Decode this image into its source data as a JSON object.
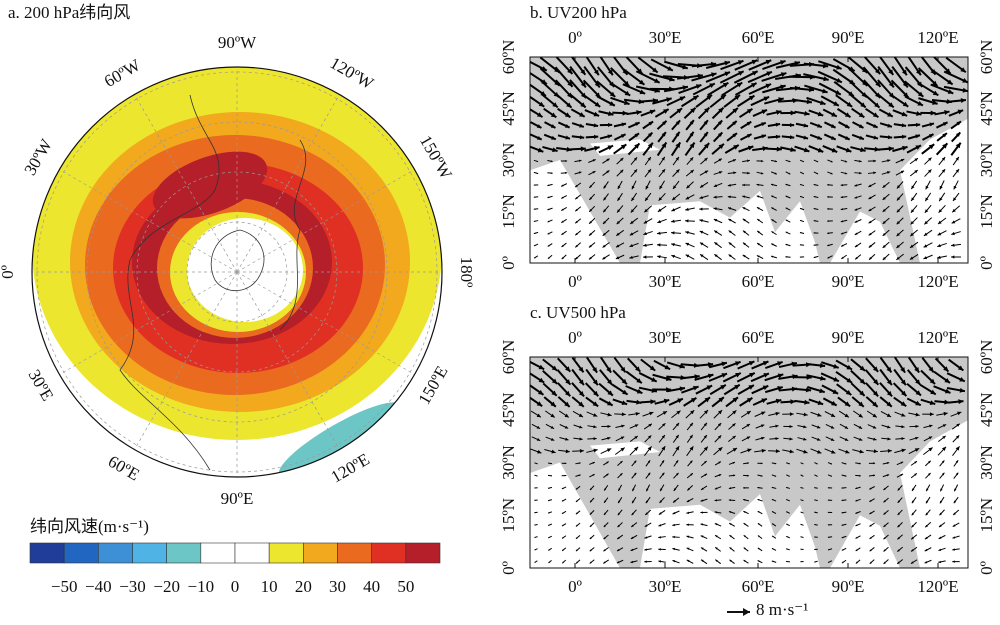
{
  "panels": [
    {
      "title": "a. 200 hPa纬向风",
      "lon_labels": [
        "90ºW",
        "120ºW",
        "150ºW",
        "180º",
        "150ºE",
        "120ºE",
        "90ºE",
        "60ºE",
        "30ºE",
        "0º",
        "30ºW",
        "60ºW"
      ]
    },
    {
      "title": "b. UV200 hPa",
      "x_labels": [
        "0º",
        "30ºE",
        "60ºE",
        "90ºE",
        "120ºE"
      ],
      "y_labels": [
        "60ºN",
        "45ºN",
        "30ºN",
        "15ºN",
        "0º"
      ]
    },
    {
      "title": "c. UV500 hPa",
      "x_labels": [
        "0º",
        "30ºE",
        "60ºE",
        "90ºE",
        "120ºE"
      ],
      "y_labels": [
        "60ºN",
        "45ºN",
        "30ºN",
        "15ºN",
        "0º"
      ]
    }
  ],
  "colorbar": {
    "title": "纬向风速(m·s⁻¹)",
    "colors": [
      "#1f3d99",
      "#2166c0",
      "#3d8fd6",
      "#4fb3e6",
      "#6cc6c6",
      "#ffffff",
      "#ffffff",
      "#ece62e",
      "#f2a91e",
      "#ea6a1f",
      "#e03024",
      "#b51f2a"
    ],
    "tick_labels": [
      "−50",
      "−40",
      "−30",
      "−20",
      "−10",
      "0",
      "10",
      "20",
      "30",
      "40",
      "50"
    ]
  },
  "reference_vector": "8 m·s⁻¹"
}
